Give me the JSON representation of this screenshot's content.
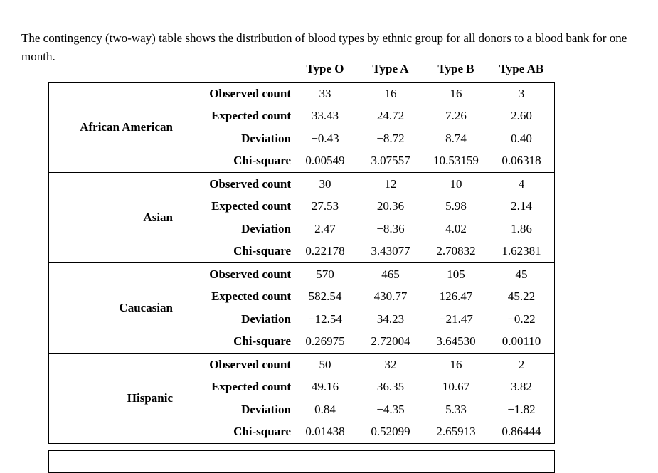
{
  "intro": {
    "text": "The contingency (two-way) table shows the distribution of blood types by ethnic group for all donors to a blood bank for one month."
  },
  "table": {
    "column_headers": [
      "Type O",
      "Type A",
      "Type B",
      "Type AB"
    ],
    "row_labels": [
      "Observed count",
      "Expected count",
      "Deviation",
      "Chi-square"
    ],
    "groups": [
      {
        "name": "African American",
        "rows": [
          {
            "label": "Observed count",
            "values": [
              "33",
              "16",
              "16",
              "3"
            ]
          },
          {
            "label": "Expected count",
            "values": [
              "33.43",
              "24.72",
              "7.26",
              "2.60"
            ]
          },
          {
            "label": "Deviation",
            "values": [
              "−0.43",
              "−8.72",
              "8.74",
              "0.40"
            ]
          },
          {
            "label": "Chi-square",
            "values": [
              "0.00549",
              "3.07557",
              "10.53159",
              "0.06318"
            ]
          }
        ]
      },
      {
        "name": "Asian",
        "rows": [
          {
            "label": "Observed count",
            "values": [
              "30",
              "12",
              "10",
              "4"
            ]
          },
          {
            "label": "Expected count",
            "values": [
              "27.53",
              "20.36",
              "5.98",
              "2.14"
            ]
          },
          {
            "label": "Deviation",
            "values": [
              "2.47",
              "−8.36",
              "4.02",
              "1.86"
            ]
          },
          {
            "label": "Chi-square",
            "values": [
              "0.22178",
              "3.43077",
              "2.70832",
              "1.62381"
            ]
          }
        ]
      },
      {
        "name": "Caucasian",
        "rows": [
          {
            "label": "Observed count",
            "values": [
              "570",
              "465",
              "105",
              "45"
            ]
          },
          {
            "label": "Expected count",
            "values": [
              "582.54",
              "430.77",
              "126.47",
              "45.22"
            ]
          },
          {
            "label": "Deviation",
            "values": [
              "−12.54",
              "34.23",
              "−21.47",
              "−0.22"
            ]
          },
          {
            "label": "Chi-square",
            "values": [
              "0.26975",
              "2.72004",
              "3.64530",
              "0.00110"
            ]
          }
        ]
      },
      {
        "name": "Hispanic",
        "rows": [
          {
            "label": "Observed count",
            "values": [
              "50",
              "32",
              "16",
              "2"
            ]
          },
          {
            "label": "Expected count",
            "values": [
              "49.16",
              "36.35",
              "10.67",
              "3.82"
            ]
          },
          {
            "label": "Deviation",
            "values": [
              "0.84",
              "−4.35",
              "5.33",
              "−1.82"
            ]
          },
          {
            "label": "Chi-square",
            "values": [
              "0.01438",
              "0.52099",
              "2.65913",
              "0.86444"
            ]
          }
        ]
      }
    ]
  }
}
